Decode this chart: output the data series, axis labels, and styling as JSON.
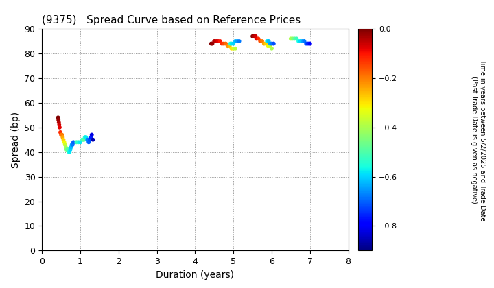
{
  "title": "(9375)   Spread Curve based on Reference Prices",
  "xlabel": "Duration (years)",
  "ylabel": "Spread (bp)",
  "colorbar_label": "Time in years between 5/2/2025 and Trade Date\n(Past Trade Date is given as negative)",
  "xlim": [
    0,
    8
  ],
  "ylim": [
    0,
    90
  ],
  "xticks": [
    0,
    1,
    2,
    3,
    4,
    5,
    6,
    7,
    8
  ],
  "yticks": [
    0,
    10,
    20,
    30,
    40,
    50,
    60,
    70,
    80,
    90
  ],
  "colorbar_ticks": [
    0.0,
    -0.2,
    -0.4,
    -0.6,
    -0.8
  ],
  "cluster1": {
    "duration": [
      0.42,
      0.43,
      0.44,
      0.45,
      0.46,
      0.48,
      0.5,
      0.52,
      0.54,
      0.56,
      0.58,
      0.6,
      0.62,
      0.64,
      0.66,
      0.68,
      0.7,
      0.72,
      0.74,
      0.76,
      0.78,
      0.8,
      0.82,
      0.9,
      0.95,
      1.0,
      1.05,
      1.08,
      1.1,
      1.12,
      1.15,
      1.18,
      1.2,
      1.22,
      1.25,
      1.28,
      1.3,
      1.33
    ],
    "spread": [
      54,
      53,
      52,
      51,
      50,
      48,
      47,
      47,
      46,
      45,
      44,
      43,
      42,
      41,
      41,
      41,
      40,
      40,
      41,
      42,
      43,
      43,
      44,
      44,
      44,
      44,
      45,
      45,
      45,
      46,
      46,
      45,
      45,
      44,
      45,
      46,
      47,
      45
    ],
    "color_val": [
      -0.0,
      -0.02,
      -0.04,
      -0.06,
      -0.08,
      -0.12,
      -0.16,
      -0.2,
      -0.24,
      -0.28,
      -0.32,
      -0.36,
      -0.4,
      -0.44,
      -0.48,
      -0.5,
      -0.55,
      -0.58,
      -0.6,
      -0.62,
      -0.65,
      -0.68,
      -0.7,
      -0.52,
      -0.55,
      -0.58,
      -0.52,
      -0.5,
      -0.48,
      -0.55,
      -0.58,
      -0.62,
      -0.68,
      -0.7,
      -0.72,
      -0.76,
      -0.82,
      -0.86
    ]
  },
  "cluster2": {
    "duration": [
      4.42,
      4.45,
      4.5,
      4.55,
      4.6,
      4.65,
      4.7,
      4.75,
      4.8,
      4.85,
      4.9,
      4.95,
      5.0,
      5.05,
      4.92,
      4.95,
      5.0,
      5.05,
      5.1,
      5.15,
      5.5,
      5.52,
      5.55,
      5.58,
      5.6,
      5.65,
      5.7,
      5.75,
      5.8,
      5.85,
      5.9,
      5.95,
      6.0,
      5.88,
      5.92,
      5.96,
      6.0,
      6.05,
      6.5,
      6.55,
      6.6,
      6.65,
      6.7,
      6.75,
      6.8,
      6.85,
      6.9,
      6.95,
      7.0
    ],
    "spread": [
      84,
      84,
      85,
      85,
      85,
      85,
      84,
      84,
      84,
      83,
      83,
      82,
      82,
      82,
      84,
      84,
      84,
      85,
      85,
      85,
      87,
      87,
      87,
      87,
      86,
      86,
      85,
      85,
      84,
      84,
      83,
      83,
      82,
      85,
      85,
      84,
      84,
      84,
      86,
      86,
      86,
      86,
      85,
      85,
      85,
      85,
      84,
      84,
      84
    ],
    "color_val": [
      -0.0,
      -0.02,
      -0.04,
      -0.06,
      -0.08,
      -0.1,
      -0.12,
      -0.15,
      -0.18,
      -0.22,
      -0.26,
      -0.3,
      -0.34,
      -0.38,
      -0.55,
      -0.58,
      -0.6,
      -0.62,
      -0.65,
      -0.68,
      -0.0,
      -0.02,
      -0.04,
      -0.06,
      -0.08,
      -0.12,
      -0.16,
      -0.2,
      -0.24,
      -0.28,
      -0.32,
      -0.36,
      -0.4,
      -0.58,
      -0.62,
      -0.65,
      -0.68,
      -0.72,
      -0.4,
      -0.44,
      -0.48,
      -0.52,
      -0.56,
      -0.6,
      -0.64,
      -0.68,
      -0.72,
      -0.76,
      -0.8
    ]
  },
  "vmin": -0.9,
  "vmax": 0.0,
  "marker_size": 18,
  "bg_color": "#ffffff"
}
